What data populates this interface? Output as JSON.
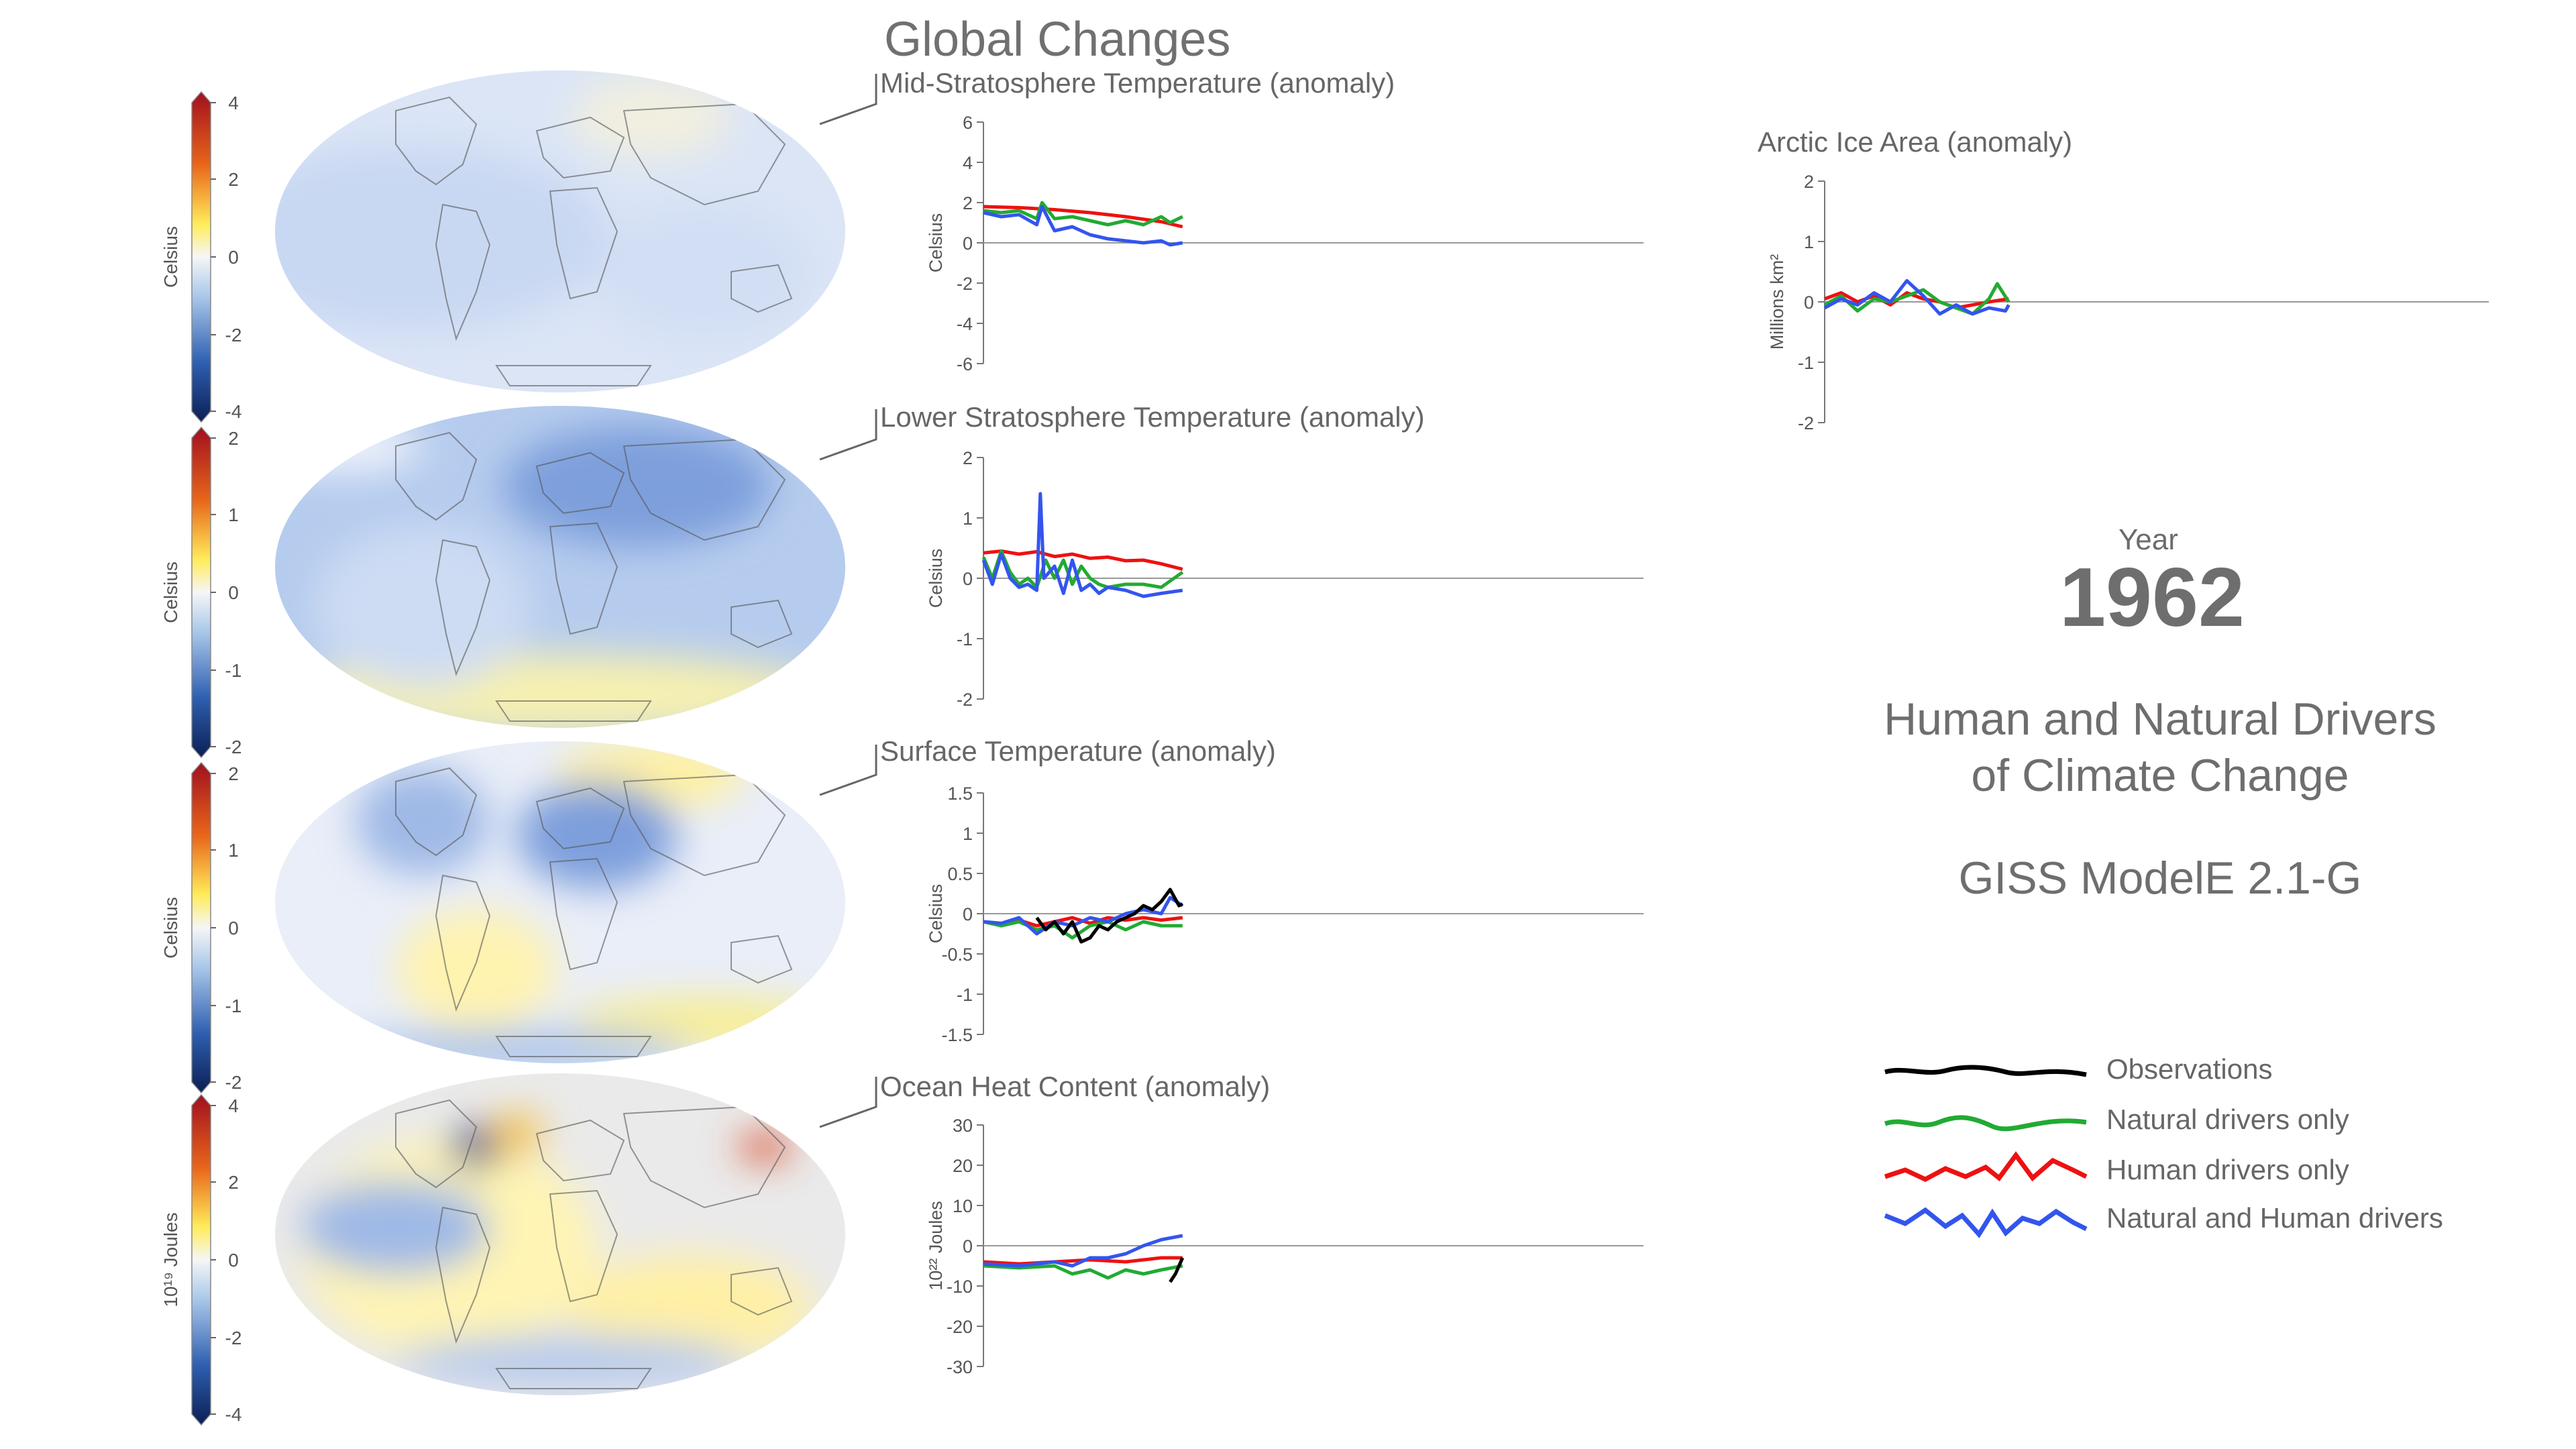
{
  "title": "Global Changes",
  "colors": {
    "observations": "#000000",
    "natural": "#22aa33",
    "human": "#ee1111",
    "both": "#3355ee"
  },
  "colorbars": [
    {
      "label": "Celsius",
      "ticks": [
        "4",
        "2",
        "0",
        "-2",
        "-4"
      ]
    },
    {
      "label": "Celsius",
      "ticks": [
        "2",
        "1",
        "0",
        "-1",
        "-2"
      ]
    },
    {
      "label": "Celsius",
      "ticks": [
        "2",
        "1",
        "0",
        "-1",
        "-2"
      ]
    },
    {
      "label": "10¹⁹ Joules",
      "ticks": [
        "4",
        "2",
        "0",
        "-2",
        "-4"
      ]
    }
  ],
  "maps": [
    "mid-stratosphere-map",
    "lower-stratosphere-map",
    "surface-map",
    "ocean-heat-map"
  ],
  "chart_data": [
    {
      "type": "line",
      "title": "Mid-Stratosphere Temperature (anomaly)",
      "ylabel": "Celsius",
      "ylim": [
        -6,
        6
      ],
      "yticks": [
        6,
        4,
        2,
        0,
        -2,
        -4,
        -6
      ],
      "xlim": [
        1850,
        2100
      ],
      "series": [
        {
          "key": "human",
          "x": [
            1850,
            1870,
            1890,
            1910,
            1930,
            1950,
            1962
          ],
          "values": [
            1.8,
            1.75,
            1.65,
            1.5,
            1.3,
            1.05,
            0.8
          ]
        },
        {
          "key": "natural",
          "x": [
            1850,
            1860,
            1870,
            1880,
            1883,
            1890,
            1900,
            1910,
            1920,
            1930,
            1940,
            1950,
            1955,
            1962
          ],
          "values": [
            1.6,
            1.5,
            1.6,
            1.2,
            2.0,
            1.2,
            1.3,
            1.1,
            0.9,
            1.1,
            0.9,
            1.3,
            1.0,
            1.3
          ]
        },
        {
          "key": "both",
          "x": [
            1850,
            1860,
            1870,
            1880,
            1883,
            1890,
            1900,
            1910,
            1920,
            1930,
            1940,
            1950,
            1955,
            1962
          ],
          "values": [
            1.5,
            1.3,
            1.4,
            0.9,
            1.8,
            0.6,
            0.8,
            0.4,
            0.2,
            0.1,
            0.0,
            0.1,
            -0.1,
            0.0
          ]
        }
      ]
    },
    {
      "type": "line",
      "title": "Lower Stratosphere Temperature (anomaly)",
      "ylabel": "Celsius",
      "ylim": [
        -2,
        2
      ],
      "yticks": [
        2,
        1,
        0,
        -1,
        -2
      ],
      "xlim": [
        1850,
        2100
      ],
      "series": [
        {
          "key": "human",
          "x": [
            1850,
            1860,
            1870,
            1880,
            1890,
            1900,
            1910,
            1920,
            1930,
            1940,
            1950,
            1962
          ],
          "values": [
            0.42,
            0.45,
            0.4,
            0.44,
            0.36,
            0.4,
            0.33,
            0.35,
            0.29,
            0.3,
            0.24,
            0.15
          ]
        },
        {
          "key": "natural",
          "x": [
            1850,
            1855,
            1860,
            1865,
            1870,
            1875,
            1880,
            1885,
            1890,
            1895,
            1900,
            1905,
            1910,
            1915,
            1920,
            1930,
            1940,
            1950,
            1962
          ],
          "values": [
            0.35,
            0.0,
            0.45,
            0.1,
            -0.1,
            0.0,
            -0.15,
            0.3,
            0.0,
            0.3,
            -0.1,
            0.2,
            0.0,
            -0.1,
            -0.15,
            -0.1,
            -0.1,
            -0.15,
            0.1
          ]
        },
        {
          "key": "both",
          "x": [
            1850,
            1855,
            1860,
            1865,
            1870,
            1875,
            1880,
            1882,
            1884,
            1890,
            1895,
            1900,
            1905,
            1910,
            1915,
            1920,
            1930,
            1940,
            1950,
            1962
          ],
          "values": [
            0.3,
            -0.1,
            0.4,
            0.0,
            -0.15,
            -0.1,
            -0.2,
            1.4,
            0.0,
            0.2,
            -0.25,
            0.3,
            -0.2,
            -0.1,
            -0.25,
            -0.15,
            -0.2,
            -0.3,
            -0.25,
            -0.2
          ]
        }
      ]
    },
    {
      "type": "line",
      "title": "Surface Temperature (anomaly)",
      "ylabel": "Celsius",
      "ylim": [
        -1.5,
        1.5
      ],
      "yticks": [
        1.5,
        1,
        0.5,
        0,
        -0.5,
        -1,
        -1.5
      ],
      "ytick_labels": [
        "1.5",
        "1",
        "0.5",
        "0",
        "-0.5",
        "-1",
        "-1.5"
      ],
      "xlim": [
        1850,
        2100
      ],
      "series": [
        {
          "key": "human",
          "x": [
            1850,
            1860,
            1870,
            1880,
            1890,
            1900,
            1910,
            1920,
            1930,
            1940,
            1950,
            1962
          ],
          "values": [
            -0.1,
            -0.12,
            -0.08,
            -0.15,
            -0.1,
            -0.05,
            -0.12,
            -0.05,
            -0.08,
            -0.05,
            -0.08,
            -0.05
          ]
        },
        {
          "key": "natural",
          "x": [
            1850,
            1860,
            1870,
            1880,
            1890,
            1900,
            1910,
            1920,
            1930,
            1940,
            1950,
            1962
          ],
          "values": [
            -0.1,
            -0.15,
            -0.1,
            -0.2,
            -0.15,
            -0.3,
            -0.15,
            -0.1,
            -0.2,
            -0.1,
            -0.15,
            -0.15
          ]
        },
        {
          "key": "both",
          "x": [
            1850,
            1860,
            1870,
            1880,
            1890,
            1900,
            1910,
            1920,
            1930,
            1940,
            1950,
            1955,
            1962
          ],
          "values": [
            -0.1,
            -0.12,
            -0.05,
            -0.25,
            -0.1,
            -0.15,
            -0.05,
            -0.1,
            0.0,
            0.05,
            0.0,
            0.2,
            0.1
          ]
        },
        {
          "key": "observations",
          "x": [
            1880,
            1885,
            1890,
            1895,
            1900,
            1905,
            1910,
            1915,
            1920,
            1925,
            1930,
            1935,
            1940,
            1945,
            1950,
            1955,
            1960,
            1962
          ],
          "values": [
            -0.05,
            -0.2,
            -0.1,
            -0.25,
            -0.1,
            -0.35,
            -0.3,
            -0.15,
            -0.2,
            -0.1,
            -0.05,
            0.0,
            0.1,
            0.05,
            0.15,
            0.3,
            0.1,
            0.12
          ]
        }
      ]
    },
    {
      "type": "line",
      "title": "Ocean Heat Content (anomaly)",
      "ylabel": "10²² Joules",
      "ylim": [
        -30,
        30
      ],
      "yticks": [
        30,
        20,
        10,
        0,
        -10,
        -20,
        -30
      ],
      "xlim": [
        1850,
        2100
      ],
      "series": [
        {
          "key": "human",
          "x": [
            1850,
            1870,
            1890,
            1910,
            1930,
            1950,
            1962
          ],
          "values": [
            -4,
            -4.5,
            -4,
            -3.5,
            -4,
            -3,
            -3
          ]
        },
        {
          "key": "natural",
          "x": [
            1850,
            1870,
            1890,
            1900,
            1910,
            1920,
            1930,
            1940,
            1950,
            1962
          ],
          "values": [
            -5,
            -5.5,
            -5,
            -7,
            -6,
            -8,
            -6,
            -7,
            -6,
            -5
          ]
        },
        {
          "key": "both",
          "x": [
            1850,
            1870,
            1890,
            1900,
            1910,
            1920,
            1930,
            1940,
            1950,
            1962
          ],
          "values": [
            -4.5,
            -5,
            -4,
            -5,
            -3,
            -3,
            -2,
            0,
            1.5,
            2.5
          ]
        },
        {
          "key": "observations",
          "x": [
            1955,
            1958,
            1960,
            1962
          ],
          "values": [
            -9,
            -7,
            -5,
            -3
          ]
        }
      ]
    },
    {
      "type": "line",
      "title": "Arctic Ice Area (anomaly)",
      "ylabel": "Millions km²",
      "ylim": [
        -2,
        2
      ],
      "yticks": [
        2,
        1,
        0,
        -1,
        -2
      ],
      "xlim": [
        1850,
        2100
      ],
      "series": [
        {
          "key": "human",
          "x": [
            1850,
            1860,
            1870,
            1880,
            1890,
            1900,
            1910,
            1920,
            1930,
            1940,
            1950,
            1962
          ],
          "values": [
            0.05,
            0.15,
            0.0,
            0.1,
            -0.05,
            0.15,
            0.05,
            0.0,
            -0.1,
            -0.05,
            0.0,
            0.05
          ]
        },
        {
          "key": "natural",
          "x": [
            1850,
            1860,
            1870,
            1880,
            1890,
            1900,
            1910,
            1920,
            1930,
            1940,
            1950,
            1955,
            1962
          ],
          "values": [
            -0.05,
            0.1,
            -0.15,
            0.05,
            0.0,
            0.1,
            0.2,
            0.0,
            -0.1,
            -0.2,
            0.05,
            0.3,
            0.0
          ]
        },
        {
          "key": "both",
          "x": [
            1850,
            1860,
            1870,
            1880,
            1890,
            1900,
            1910,
            1920,
            1930,
            1940,
            1950,
            1960,
            1962
          ],
          "values": [
            -0.1,
            0.05,
            -0.05,
            0.15,
            0.0,
            0.35,
            0.1,
            -0.2,
            -0.05,
            -0.2,
            -0.1,
            -0.15,
            -0.05
          ]
        }
      ]
    }
  ],
  "year_label": "Year",
  "year": "1962",
  "headline_line1": "Human and Natural Drivers",
  "headline_line2": "of Climate Change",
  "model": "GISS ModelE 2.1-G",
  "legend": [
    {
      "key": "observations",
      "label": "Observations"
    },
    {
      "key": "natural",
      "label": "Natural drivers only"
    },
    {
      "key": "human",
      "label": "Human drivers only"
    },
    {
      "key": "both",
      "label": "Natural and Human drivers"
    }
  ]
}
